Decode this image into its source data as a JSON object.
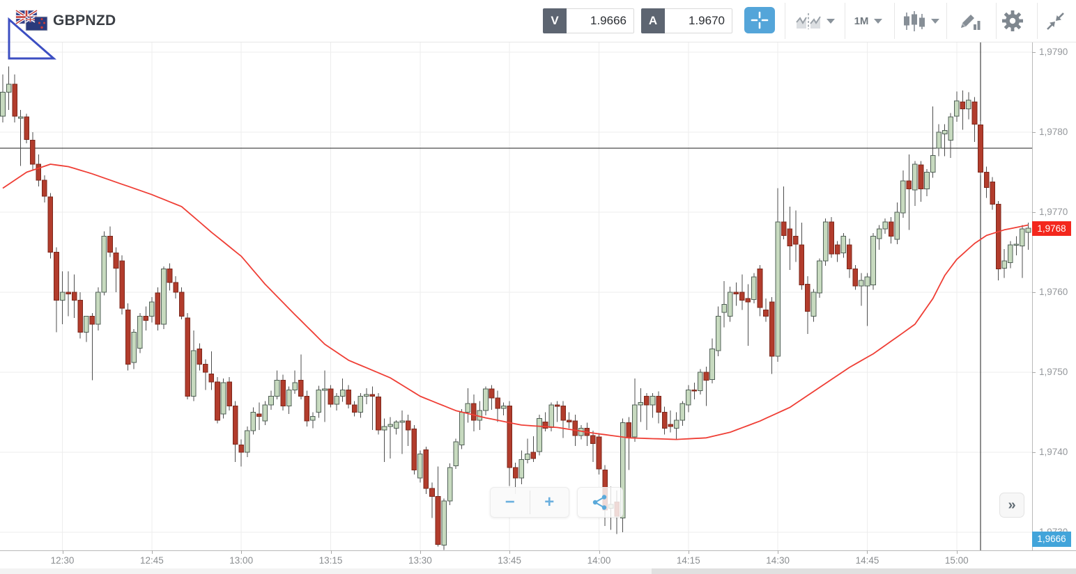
{
  "header": {
    "symbol": "GBPNZD",
    "bid": {
      "button_label": "V",
      "value": "1.9666"
    },
    "ask": {
      "button_label": "A",
      "value": "1.9670"
    },
    "timeframe": "1M",
    "icons": [
      "flag",
      "crosshair",
      "chart-style",
      "timeframe",
      "candlestick-type",
      "draw-indicator",
      "settings-gear",
      "collapse"
    ]
  },
  "overlay_controls": {
    "zoom_out": "−",
    "zoom_in": "+",
    "share_icon": "share",
    "more": "»"
  },
  "badges": {
    "last_price": {
      "text": "1,9768",
      "color": "#f3271d",
      "price": 1.9768
    },
    "bid_marker": {
      "text": "1,9666",
      "color": "#42a4da",
      "pinned_bottom": true
    }
  },
  "chart_data": {
    "type": "candlestick",
    "title": "GBPNZD 1-minute chart",
    "start_time": "12:20",
    "interval_minutes": 1,
    "grid": true,
    "ylim": [
      1.97278,
      1.97913
    ],
    "price_axis": {
      "labels": [
        "1,9790",
        "1,9780",
        "1,9770",
        "1,9760",
        "1,9750",
        "1,9740",
        "1,9730"
      ],
      "values": [
        1.979,
        1.978,
        1.977,
        1.976,
        1.975,
        1.974,
        1.973
      ]
    },
    "time_axis": {
      "labels": [
        "12:30",
        "12:45",
        "13:00",
        "13:15",
        "13:30",
        "13:45",
        "14:00",
        "14:15",
        "14:30",
        "14:45",
        "15:00"
      ],
      "first_label_index": 10,
      "candles_per_label": 15
    },
    "level_line_price": 1.9778,
    "session_line_index": 164,
    "ma_points": [
      [
        0,
        1.9773
      ],
      [
        4,
        1.9775
      ],
      [
        8,
        1.9776
      ],
      [
        11,
        1.97757
      ],
      [
        15,
        1.97748
      ],
      [
        20,
        1.97735
      ],
      [
        25,
        1.97722
      ],
      [
        30,
        1.97707
      ],
      [
        35,
        1.97675
      ],
      [
        40,
        1.97645
      ],
      [
        44,
        1.9761
      ],
      [
        49,
        1.97572
      ],
      [
        54,
        1.97535
      ],
      [
        58,
        1.97515
      ],
      [
        65,
        1.97493
      ],
      [
        70,
        1.9747
      ],
      [
        76,
        1.97452
      ],
      [
        81,
        1.97443
      ],
      [
        87,
        1.97434
      ],
      [
        93,
        1.97431
      ],
      [
        99,
        1.97424
      ],
      [
        105,
        1.97418
      ],
      [
        113,
        1.97416
      ],
      [
        118,
        1.97418
      ],
      [
        122,
        1.97425
      ],
      [
        127,
        1.97439
      ],
      [
        132,
        1.97456
      ],
      [
        137,
        1.97481
      ],
      [
        142,
        1.97506
      ],
      [
        146,
        1.97523
      ],
      [
        150,
        1.97544
      ],
      [
        153,
        1.9756
      ],
      [
        156,
        1.97592
      ],
      [
        158,
        1.97621
      ],
      [
        160,
        1.97641
      ],
      [
        163,
        1.97661
      ],
      [
        165,
        1.97671
      ],
      [
        168,
        1.97678
      ],
      [
        170,
        1.97681
      ],
      [
        172,
        1.97684
      ]
    ],
    "candles": [
      [
        1.9782,
        1.97872,
        1.97812,
        1.9785
      ],
      [
        1.9785,
        1.97882,
        1.97828,
        1.9786
      ],
      [
        1.9786,
        1.97872,
        1.97812,
        1.9782
      ],
      [
        1.97818,
        1.97828,
        1.97758,
        1.97819
      ],
      [
        1.97819,
        1.97823,
        1.97786,
        1.97791
      ],
      [
        1.9779,
        1.978,
        1.97752,
        1.9776
      ],
      [
        1.9776,
        1.97772,
        1.97732,
        1.9774
      ],
      [
        1.9774,
        1.97746,
        1.97712,
        1.9772
      ],
      [
        1.97719,
        1.97724,
        1.97642,
        1.9765
      ],
      [
        1.9765,
        1.97656,
        1.9755,
        1.9759
      ],
      [
        1.9759,
        1.97626,
        1.9756,
        1.976
      ],
      [
        1.976,
        1.97626,
        1.9757,
        1.97598
      ],
      [
        1.976,
        1.97622,
        1.97568,
        1.9759
      ],
      [
        1.9759,
        1.976,
        1.97542,
        1.9755
      ],
      [
        1.9755,
        1.97562,
        1.97538,
        1.9757
      ],
      [
        1.9757,
        1.97574,
        1.9749,
        1.9756
      ],
      [
        1.9756,
        1.97606,
        1.97552,
        1.976
      ],
      [
        1.976,
        1.97676,
        1.97596,
        1.9767
      ],
      [
        1.9767,
        1.97682,
        1.97644,
        1.9765
      ],
      [
        1.97649,
        1.97656,
        1.976,
        1.9763
      ],
      [
        1.97639,
        1.97646,
        1.97572,
        1.9758
      ],
      [
        1.97578,
        1.97586,
        1.97502,
        1.9751
      ],
      [
        1.97512,
        1.97554,
        1.97504,
        1.9755
      ],
      [
        1.9753,
        1.97574,
        1.97524,
        1.9757
      ],
      [
        1.9757,
        1.97582,
        1.97552,
        1.97565
      ],
      [
        1.9757,
        1.97594,
        1.97562,
        1.97588
      ],
      [
        1.97599,
        1.97606,
        1.97552,
        1.9756
      ],
      [
        1.9756,
        1.97632,
        1.97554,
        1.97629
      ],
      [
        1.97629,
        1.97636,
        1.97602,
        1.97612
      ],
      [
        1.97612,
        1.9762,
        1.97592,
        1.976
      ],
      [
        1.976,
        1.97606,
        1.97566,
        1.9757
      ],
      [
        1.97568,
        1.97574,
        1.97466,
        1.9747
      ],
      [
        1.9747,
        1.97552,
        1.97464,
        1.97527
      ],
      [
        1.97529,
        1.97536,
        1.97502,
        1.9751
      ],
      [
        1.9751,
        1.97516,
        1.97478,
        1.975
      ],
      [
        1.97498,
        1.97526,
        1.97478,
        1.97488
      ],
      [
        1.97488,
        1.97494,
        1.97436,
        1.9744
      ],
      [
        1.97448,
        1.97492,
        1.97442,
        1.97487
      ],
      [
        1.97488,
        1.97494,
        1.97452,
        1.97458
      ],
      [
        1.97458,
        1.97464,
        1.97388,
        1.9741
      ],
      [
        1.97409,
        1.97416,
        1.97382,
        1.974
      ],
      [
        1.974,
        1.97432,
        1.97394,
        1.97427
      ],
      [
        1.97427,
        1.97456,
        1.97422,
        1.9745
      ],
      [
        1.97448,
        1.97462,
        1.97428,
        1.97445
      ],
      [
        1.97439,
        1.97464,
        1.97434,
        1.97459
      ],
      [
        1.97459,
        1.97477,
        1.97453,
        1.9747
      ],
      [
        1.9747,
        1.97502,
        1.97466,
        1.9749
      ],
      [
        1.9749,
        1.97497,
        1.97452,
        1.97458
      ],
      [
        1.97458,
        1.97482,
        1.97448,
        1.97478
      ],
      [
        1.97478,
        1.97502,
        1.97473,
        1.97487
      ],
      [
        1.9749,
        1.97522,
        1.97466,
        1.9747
      ],
      [
        1.9747,
        1.97477,
        1.97432,
        1.97439
      ],
      [
        1.9744,
        1.9745,
        1.9743,
        1.97445
      ],
      [
        1.9745,
        1.97483,
        1.97443,
        1.97478
      ],
      [
        1.97478,
        1.97502,
        1.97438,
        1.97479
      ],
      [
        1.97479,
        1.97484,
        1.97456,
        1.9746
      ],
      [
        1.9746,
        1.97474,
        1.97452,
        1.9747
      ],
      [
        1.9747,
        1.97492,
        1.97463,
        1.97478
      ],
      [
        1.97478,
        1.97484,
        1.97455,
        1.9746
      ],
      [
        1.97459,
        1.97464,
        1.97445,
        1.9745
      ],
      [
        1.9745,
        1.97474,
        1.97443,
        1.9747
      ],
      [
        1.9747,
        1.9748,
        1.9746,
        1.97472
      ],
      [
        1.97472,
        1.97482,
        1.97428,
        1.9747
      ],
      [
        1.97469,
        1.97474,
        1.97422,
        1.97428
      ],
      [
        1.97428,
        1.97442,
        1.97388,
        1.97432
      ],
      [
        1.97432,
        1.97444,
        1.97392,
        1.97435
      ],
      [
        1.9743,
        1.9744,
        1.97422,
        1.97438
      ],
      [
        1.97438,
        1.97452,
        1.97398,
        1.97439
      ],
      [
        1.97439,
        1.97447,
        1.97408,
        1.97428
      ],
      [
        1.97429,
        1.97434,
        1.97372,
        1.97378
      ],
      [
        1.97368,
        1.97402,
        1.97362,
        1.97398
      ],
      [
        1.97403,
        1.97407,
        1.97348,
        1.97355
      ],
      [
        1.97355,
        1.97362,
        1.97318,
        1.97345
      ],
      [
        1.97345,
        1.97382,
        1.97282,
        1.97285
      ],
      [
        1.97284,
        1.97342,
        1.97278,
        1.97339
      ],
      [
        1.97339,
        1.97386,
        1.97334,
        1.97381
      ],
      [
        1.97383,
        1.97417,
        1.97379,
        1.97413
      ],
      [
        1.97409,
        1.97454,
        1.97404,
        1.9745
      ],
      [
        1.9745,
        1.9748,
        1.97437,
        1.97461
      ],
      [
        1.97461,
        1.97472,
        1.97426,
        1.9744
      ],
      [
        1.9744,
        1.97464,
        1.97428,
        1.97452
      ],
      [
        1.97452,
        1.97482,
        1.97446,
        1.97479
      ],
      [
        1.97479,
        1.97484,
        1.97453,
        1.97468
      ],
      [
        1.97468,
        1.97477,
        1.97438,
        1.97455
      ],
      [
        1.97455,
        1.97462,
        1.97446,
        1.97458
      ],
      [
        1.97458,
        1.97464,
        1.97358,
        1.97381
      ],
      [
        1.97381,
        1.97387,
        1.97348,
        1.97368
      ],
      [
        1.97368,
        1.97402,
        1.9736,
        1.97391
      ],
      [
        1.97391,
        1.97417,
        1.97386,
        1.97398
      ],
      [
        1.974,
        1.9742,
        1.97388,
        1.97392
      ],
      [
        1.97401,
        1.97447,
        1.97396,
        1.97442
      ],
      [
        1.97438,
        1.9745,
        1.97426,
        1.9743
      ],
      [
        1.97431,
        1.97462,
        1.97426,
        1.97459
      ],
      [
        1.97459,
        1.97464,
        1.97438,
        1.97458
      ],
      [
        1.97458,
        1.97464,
        1.97418,
        1.9744
      ],
      [
        1.9744,
        1.9745,
        1.9743,
        1.97438
      ],
      [
        1.97439,
        1.97447,
        1.97408,
        1.97421
      ],
      [
        1.97421,
        1.97434,
        1.97416,
        1.9743
      ],
      [
        1.9743,
        1.97437,
        1.97408,
        1.97421
      ],
      [
        1.97421,
        1.97427,
        1.97388,
        1.97411
      ],
      [
        1.97419,
        1.97424,
        1.97372,
        1.97379
      ],
      [
        1.97378,
        1.97384,
        1.97308,
        1.97328
      ],
      [
        1.9733,
        1.97357,
        1.97303,
        1.97335
      ],
      [
        1.97338,
        1.97352,
        1.97298,
        1.9732
      ],
      [
        1.97318,
        1.97442,
        1.973,
        1.97437
      ],
      [
        1.97437,
        1.97444,
        1.97378,
        1.97418
      ],
      [
        1.97419,
        1.97492,
        1.97413,
        1.97459
      ],
      [
        1.97459,
        1.9748,
        1.97438,
        1.97462
      ],
      [
        1.9747,
        1.97474,
        1.97428,
        1.97459
      ],
      [
        1.97459,
        1.97474,
        1.97443,
        1.9747
      ],
      [
        1.9747,
        1.97476,
        1.97436,
        1.9745
      ],
      [
        1.9745,
        1.97457,
        1.97422,
        1.9743
      ],
      [
        1.97435,
        1.97452,
        1.97425,
        1.97432
      ],
      [
        1.9743,
        1.9745,
        1.97416,
        1.9744
      ],
      [
        1.9744,
        1.97464,
        1.97433,
        1.97461
      ],
      [
        1.97459,
        1.97484,
        1.9745,
        1.97478
      ],
      [
        1.97478,
        1.97487,
        1.97466,
        1.97477
      ],
      [
        1.97477,
        1.97504,
        1.97472,
        1.975
      ],
      [
        1.975,
        1.97507,
        1.97458,
        1.9749
      ],
      [
        1.97491,
        1.97542,
        1.97486,
        1.97529
      ],
      [
        1.97527,
        1.97582,
        1.9752,
        1.9757
      ],
      [
        1.97575,
        1.97614,
        1.97556,
        1.97585
      ],
      [
        1.9757,
        1.97607,
        1.97563,
        1.976
      ],
      [
        1.976,
        1.97612,
        1.97583,
        1.97598
      ],
      [
        1.976,
        1.97622,
        1.97578,
        1.9759
      ],
      [
        1.97592,
        1.9761,
        1.97533,
        1.97588
      ],
      [
        1.97591,
        1.97624,
        1.97586,
        1.97619
      ],
      [
        1.97629,
        1.97634,
        1.9757,
        1.97581
      ],
      [
        1.97578,
        1.97592,
        1.97563,
        1.9757
      ],
      [
        1.97588,
        1.97594,
        1.97498,
        1.9752
      ],
      [
        1.9752,
        1.9773,
        1.97513,
        1.97688
      ],
      [
        1.97688,
        1.97732,
        1.97666,
        1.97671
      ],
      [
        1.97679,
        1.97707,
        1.97628,
        1.97658
      ],
      [
        1.9767,
        1.97702,
        1.97638,
        1.9766
      ],
      [
        1.97659,
        1.97687,
        1.97603,
        1.97609
      ],
      [
        1.9761,
        1.9762,
        1.97548,
        1.97576
      ],
      [
        1.9757,
        1.97604,
        1.97563,
        1.976
      ],
      [
        1.97599,
        1.97642,
        1.97593,
        1.97639
      ],
      [
        1.97639,
        1.97692,
        1.97633,
        1.97688
      ],
      [
        1.97688,
        1.97694,
        1.97643,
        1.97648
      ],
      [
        1.97659,
        1.97664,
        1.97638,
        1.97648
      ],
      [
        1.97649,
        1.97674,
        1.97643,
        1.9767
      ],
      [
        1.97659,
        1.97667,
        1.97618,
        1.97629
      ],
      [
        1.97629,
        1.97634,
        1.97603,
        1.97608
      ],
      [
        1.97608,
        1.97624,
        1.97583,
        1.97615
      ],
      [
        1.97608,
        1.97624,
        1.97558,
        1.97619
      ],
      [
        1.97609,
        1.97674,
        1.97603,
        1.9767
      ],
      [
        1.97667,
        1.97684,
        1.97653,
        1.97679
      ],
      [
        1.97679,
        1.97692,
        1.97673,
        1.97688
      ],
      [
        1.97688,
        1.97694,
        1.97661,
        1.9767
      ],
      [
        1.97666,
        1.97712,
        1.9766,
        1.977
      ],
      [
        1.97699,
        1.97752,
        1.97693,
        1.97739
      ],
      [
        1.97739,
        1.97772,
        1.97678,
        1.97729
      ],
      [
        1.97728,
        1.97764,
        1.97708,
        1.9776
      ],
      [
        1.97759,
        1.97764,
        1.97713,
        1.97729
      ],
      [
        1.97729,
        1.97754,
        1.9772,
        1.9775
      ],
      [
        1.9775,
        1.97832,
        1.97743,
        1.97771
      ],
      [
        1.9778,
        1.9781,
        1.9777,
        1.978
      ],
      [
        1.97798,
        1.9781,
        1.9777,
        1.97802
      ],
      [
        1.9779,
        1.97824,
        1.97768,
        1.97819
      ],
      [
        1.9782,
        1.97851,
        1.97813,
        1.97839
      ],
      [
        1.97838,
        1.97852,
        1.97803,
        1.97829
      ],
      [
        1.97829,
        1.9785,
        1.97816,
        1.9784
      ],
      [
        1.97838,
        1.97844,
        1.97788,
        1.9781
      ],
      [
        1.97809,
        1.97814,
        1.97746,
        1.9775
      ],
      [
        1.9775,
        1.97757,
        1.97718,
        1.97731
      ],
      [
        1.97738,
        1.97744,
        1.97703,
        1.9771
      ],
      [
        1.9771,
        1.97714,
        1.97615,
        1.97629
      ],
      [
        1.9763,
        1.97654,
        1.97618,
        1.97639
      ],
      [
        1.97637,
        1.97664,
        1.9763,
        1.97659
      ],
      [
        1.97659,
        1.9767,
        1.97646,
        1.9766
      ],
      [
        1.97658,
        1.97684,
        1.97618,
        1.97679
      ],
      [
        1.97675,
        1.97687,
        1.97653,
        1.9768
      ]
    ],
    "colors": {
      "up_fill": "#c7dabf",
      "up_border": "#4f5f55",
      "down_fill": "#b23c2c",
      "down_border": "#7c271b",
      "wick": "#4d4d4d",
      "ma": "#ef3e35",
      "grid": "#ededed",
      "level_line": "#1c1c1c",
      "axis_text": "#94979b"
    }
  }
}
